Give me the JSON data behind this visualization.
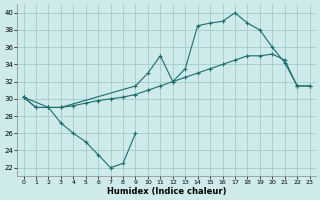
{
  "xlabel": "Humidex (Indice chaleur)",
  "xlim": [
    -0.5,
    23.5
  ],
  "ylim": [
    21,
    41
  ],
  "yticks": [
    22,
    24,
    26,
    28,
    30,
    32,
    34,
    36,
    38,
    40
  ],
  "xticks": [
    0,
    1,
    2,
    3,
    4,
    5,
    6,
    7,
    8,
    9,
    10,
    11,
    12,
    13,
    14,
    15,
    16,
    17,
    18,
    19,
    20,
    21,
    22,
    23
  ],
  "bg_color": "#ceeaea",
  "grid_color": "#a0cccc",
  "line_color": "#1a6e6e",
  "line1_x": [
    0,
    1,
    2,
    3,
    4,
    5,
    6,
    7,
    8,
    9
  ],
  "line1_y": [
    30.2,
    29.0,
    29.0,
    27.2,
    26.0,
    25.0,
    23.5,
    22.0,
    22.5,
    26.0
  ],
  "line2_x": [
    0,
    1,
    2,
    3,
    4,
    5,
    6,
    7,
    8,
    9,
    10,
    11,
    12,
    13,
    14,
    15,
    16,
    17,
    18,
    19,
    20,
    21,
    22,
    23
  ],
  "line2_y": [
    30.2,
    29.0,
    29.0,
    29.0,
    29.2,
    29.5,
    29.8,
    30.0,
    30.2,
    30.5,
    31.0,
    31.5,
    32.0,
    32.5,
    33.0,
    33.5,
    34.0,
    34.5,
    35.0,
    35.0,
    35.2,
    34.5,
    31.5,
    31.5
  ],
  "line3_x": [
    0,
    2,
    3,
    9,
    10,
    11,
    12,
    13,
    14,
    15,
    16,
    17,
    18,
    19,
    20,
    21,
    22,
    23
  ],
  "line3_y": [
    30.2,
    29.0,
    29.0,
    31.5,
    33.0,
    35.0,
    32.0,
    33.5,
    38.5,
    38.8,
    39.0,
    40.0,
    38.8,
    38.0,
    36.0,
    34.2,
    31.5,
    31.5
  ]
}
